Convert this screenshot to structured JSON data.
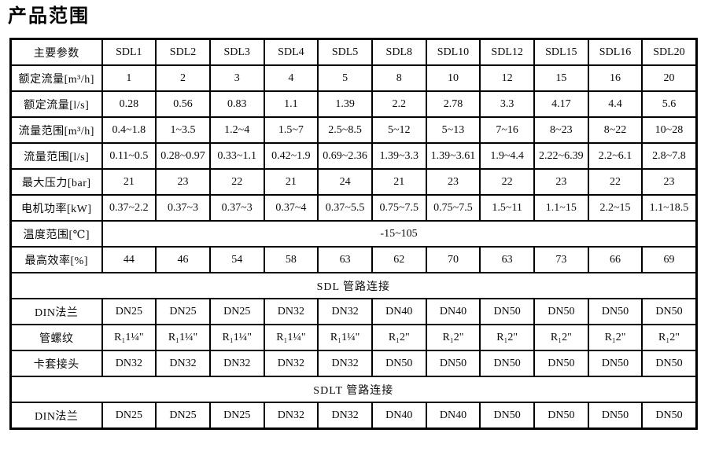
{
  "page_title": "产品范围",
  "table": {
    "header_label": "主要参数",
    "models": [
      "SDL1",
      "SDL2",
      "SDL3",
      "SDL4",
      "SDL5",
      "SDL8",
      "SDL10",
      "SDL12",
      "SDL15",
      "SDL16",
      "SDL20"
    ],
    "rows": [
      {
        "type": "data",
        "label": "额定流量[m³/h]",
        "values": [
          "1",
          "2",
          "3",
          "4",
          "5",
          "8",
          "10",
          "12",
          "15",
          "16",
          "20"
        ]
      },
      {
        "type": "data",
        "label": "额定流量[l/s]",
        "values": [
          "0.28",
          "0.56",
          "0.83",
          "1.1",
          "1.39",
          "2.2",
          "2.78",
          "3.3",
          "4.17",
          "4.4",
          "5.6"
        ]
      },
      {
        "type": "data",
        "label": "流量范围[m³/h]",
        "values": [
          "0.4~1.8",
          "1~3.5",
          "1.2~4",
          "1.5~7",
          "2.5~8.5",
          "5~12",
          "5~13",
          "7~16",
          "8~23",
          "8~22",
          "10~28"
        ]
      },
      {
        "type": "data",
        "label": "流量范围[l/s]",
        "values": [
          "0.11~0.5",
          "0.28~0.97",
          "0.33~1.1",
          "0.42~1.9",
          "0.69~2.36",
          "1.39~3.3",
          "1.39~3.61",
          "1.9~4.4",
          "2.22~6.39",
          "2.2~6.1",
          "2.8~7.8"
        ]
      },
      {
        "type": "data",
        "label": "最大压力[bar]",
        "values": [
          "21",
          "23",
          "22",
          "21",
          "24",
          "21",
          "23",
          "22",
          "23",
          "22",
          "23"
        ]
      },
      {
        "type": "data",
        "label": "电机功率[kW]",
        "values": [
          "0.37~2.2",
          "0.37~3",
          "0.37~3",
          "0.37~4",
          "0.37~5.5",
          "0.75~7.5",
          "0.75~7.5",
          "1.5~11",
          "1.1~15",
          "2.2~15",
          "1.1~18.5"
        ]
      },
      {
        "type": "span",
        "label": "温度范围[℃]",
        "value": "-15~105"
      },
      {
        "type": "data",
        "label": "最高效率[%]",
        "values": [
          "44",
          "46",
          "54",
          "58",
          "63",
          "62",
          "70",
          "63",
          "73",
          "66",
          "69"
        ]
      },
      {
        "type": "section",
        "label": "SDL 管路连接"
      },
      {
        "type": "data",
        "label": "DIN法兰",
        "values": [
          "DN25",
          "DN25",
          "DN25",
          "DN32",
          "DN32",
          "DN40",
          "DN40",
          "DN50",
          "DN50",
          "DN50",
          "DN50"
        ]
      },
      {
        "type": "data",
        "label": "管螺纹",
        "values": [
          "R₁1¼\"",
          "R₁1¼\"",
          "R₁1¼\"",
          "R₁1¼\"",
          "R₁1¼\"",
          "R₁2\"",
          "R₁2\"",
          "R₁2\"",
          "R₁2\"",
          "R₁2\"",
          "R₁2\""
        ]
      },
      {
        "type": "data",
        "label": "卡套接头",
        "values": [
          "DN32",
          "DN32",
          "DN32",
          "DN32",
          "DN32",
          "DN50",
          "DN50",
          "DN50",
          "DN50",
          "DN50",
          "DN50"
        ]
      },
      {
        "type": "section",
        "label": "SDLT 管路连接"
      },
      {
        "type": "data",
        "label": "DIN法兰",
        "values": [
          "DN25",
          "DN25",
          "DN25",
          "DN32",
          "DN32",
          "DN40",
          "DN40",
          "DN50",
          "DN50",
          "DN50",
          "DN50"
        ]
      }
    ]
  },
  "colors": {
    "text": "#0a0a0a",
    "border": "#000000",
    "background": "#ffffff"
  }
}
